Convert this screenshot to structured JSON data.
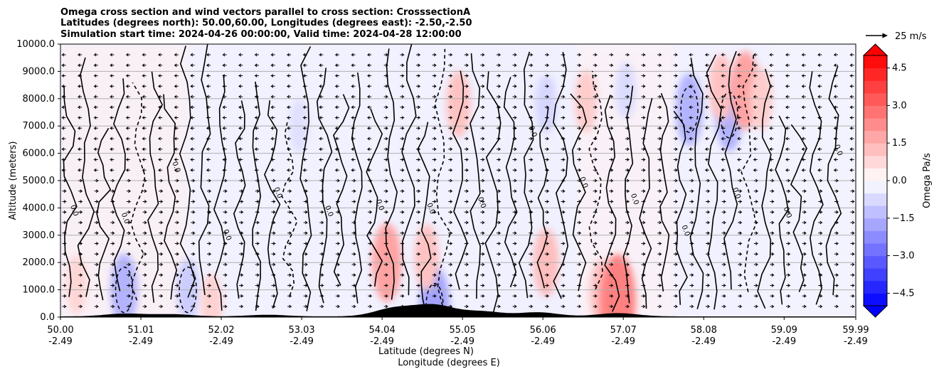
{
  "chart_data": {
    "type": "heatmap",
    "title_lines": [
      "Omega cross section and wind vectors parallel to cross section: CrosssectionA",
      "Latitudes (degrees north): 50.00,60.00, Longitudes (degrees east): -2.50,-2.50",
      "Simulation start time: 2024-04-26 00:00:00, Valid time: 2024-04-28 12:00:00"
    ],
    "ylabel": "Altitude (meters)",
    "xlabel_lat": "Latitude (degrees N)",
    "xlabel_lon": "Longitude (degrees E)",
    "ylim": [
      0,
      10000
    ],
    "xlim": [
      50.0,
      59.99
    ],
    "y_ticks": [
      0,
      1000,
      2000,
      3000,
      4000,
      5000,
      6000,
      7000,
      8000,
      9000,
      10000
    ],
    "y_tick_labels": [
      "0.0",
      "1000.0",
      "2000.0",
      "3000.0",
      "4000.0",
      "5000.0",
      "6000.0",
      "7000.0",
      "8000.0",
      "9000.0",
      "10000.0"
    ],
    "x_ticks": [
      50.0,
      51.01,
      52.02,
      53.03,
      54.04,
      55.05,
      56.06,
      57.07,
      58.08,
      59.09,
      59.99
    ],
    "x_tick_lat_labels": [
      "50.00",
      "51.01",
      "52.02",
      "53.03",
      "54.04",
      "55.05",
      "56.06",
      "57.07",
      "58.08",
      "59.09",
      "59.99"
    ],
    "x_tick_lon_labels": [
      "-2.49",
      "-2.49",
      "-2.49",
      "-2.49",
      "-2.49",
      "-2.49",
      "-2.49",
      "-2.49",
      "-2.49",
      "-2.49",
      "-2.49"
    ],
    "grid": true,
    "colorbar": {
      "label": "Omega Pa/s",
      "range": [
        -5.0,
        5.0
      ],
      "ticks": [
        4.5,
        3.0,
        1.5,
        0.0,
        -1.5,
        -3.0,
        -4.5
      ],
      "tick_labels": [
        "4.5",
        "3.0",
        "1.5",
        "0.0",
        "−1.5",
        "−3.0",
        "−4.5"
      ],
      "extend": "both",
      "colors": {
        "high": "#ff0000",
        "mid": "#ffffff",
        "low": "#0000ff"
      }
    },
    "quiver_key": {
      "label": "25 m/s"
    },
    "contour_levels": [
      -1.0,
      0.0,
      1.0
    ],
    "contour_labels": [
      "0.0",
      "1.0",
      "-1.0"
    ],
    "ascent_regions": [
      {
        "lat": 50.8,
        "alt": 1000,
        "value": -1.5
      },
      {
        "lat": 51.6,
        "alt": 1000,
        "value": -1.0
      },
      {
        "lat": 53.0,
        "alt": 7000,
        "value": -0.6
      },
      {
        "lat": 54.7,
        "alt": 400,
        "value": -1.8
      },
      {
        "lat": 56.1,
        "alt": 7800,
        "value": -0.8
      },
      {
        "lat": 57.9,
        "alt": 7600,
        "value": -1.5
      },
      {
        "lat": 58.4,
        "alt": 7400,
        "value": -1.5
      },
      {
        "lat": 57.1,
        "alt": 8300,
        "value": -0.7
      }
    ],
    "descent_regions": [
      {
        "lat": 54.1,
        "alt": 2000,
        "value": 1.8
      },
      {
        "lat": 54.6,
        "alt": 2200,
        "value": 1.2
      },
      {
        "lat": 55.0,
        "alt": 7800,
        "value": 1.2
      },
      {
        "lat": 56.1,
        "alt": 2000,
        "value": 1.3
      },
      {
        "lat": 56.6,
        "alt": 7900,
        "value": 1.0
      },
      {
        "lat": 56.8,
        "alt": 900,
        "value": 1.2
      },
      {
        "lat": 57.0,
        "alt": 600,
        "value": 2.5
      },
      {
        "lat": 58.3,
        "alt": 8400,
        "value": 1.2
      },
      {
        "lat": 58.6,
        "alt": 8300,
        "value": 1.8
      },
      {
        "lat": 58.8,
        "alt": 8000,
        "value": 1.0
      },
      {
        "lat": 50.2,
        "alt": 1200,
        "value": 0.8
      },
      {
        "lat": 51.9,
        "alt": 500,
        "value": 0.9
      }
    ]
  }
}
